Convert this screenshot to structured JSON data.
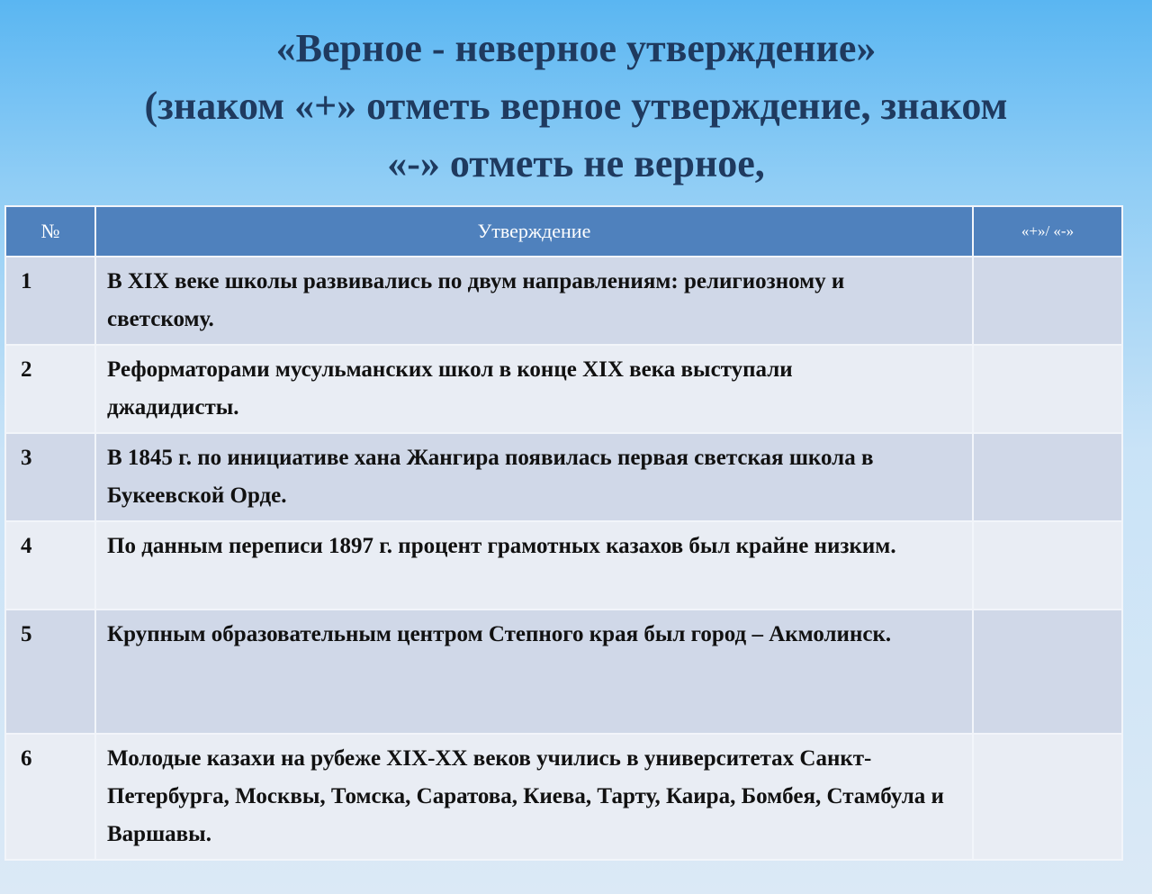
{
  "title": {
    "line1": "«Верное - неверное утверждение»",
    "line2": "(знаком «+» отметь верное утверждение, знаком",
    "line3": "«-» отметь не верное,"
  },
  "table": {
    "headers": [
      "№",
      "Утверждение",
      "«+»/ «-»"
    ],
    "rows": [
      {
        "num": "1",
        "text": "В XIX веке школы развивались по двум направлениям: религиозному и светскому.",
        "mark": ""
      },
      {
        "num": "2",
        "text": "Реформаторами мусульманских школ в конце XIX века выступали джадидисты.",
        "mark": ""
      },
      {
        "num": "3",
        "text": "В 1845 г. по инициативе хана Жангира появилась первая светская школа в Букеевской Орде.",
        "mark": ""
      },
      {
        "num": "4",
        "text": "По данным переписи 1897 г. процент грамотных казахов был крайне низким.",
        "mark": ""
      },
      {
        "num": "5",
        "text": "Крупным образовательным центром Степного края был город – Акмолинск.",
        "mark": ""
      },
      {
        "num": "6",
        "text": "Молодые казахи на рубеже XIX-XX веков учились в университетах Санкт-Петербурга, Москвы, Томска, Саратова, Киева, Тарту, Каира, Бомбея, Стамбула и Варшавы.",
        "mark": ""
      }
    ]
  }
}
